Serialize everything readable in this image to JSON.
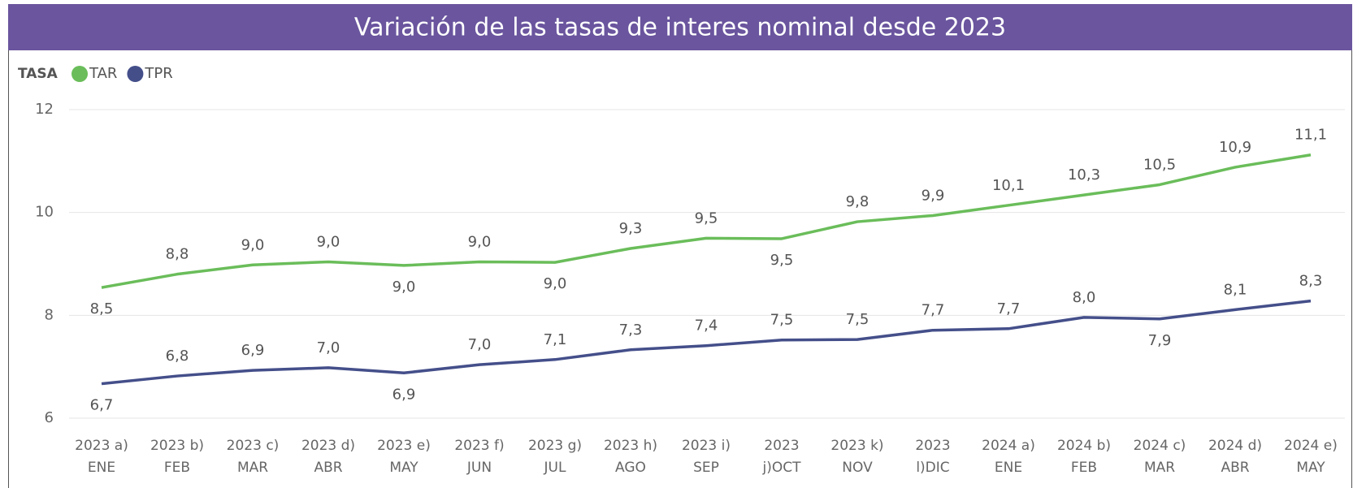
{
  "chart_data": {
    "type": "line",
    "title": "Variación de las tasas de interes nominal desde 2023",
    "legend_title": "TASA",
    "categories": [
      "2023 a) ENE",
      "2023 b) FEB",
      "2023 c) MAR",
      "2023 d) ABR",
      "2023 e) MAY",
      "2023 f) JUN",
      "2023 g) JUL",
      "2023 h) AGO",
      "2023 i) SEP",
      "2023 j)OCT",
      "2023 k) NOV",
      "2023 l)DIC",
      "2024 a) ENE",
      "2024 b) FEB",
      "2024 c) MAR",
      "2024 d) ABR",
      "2024 e) MAY"
    ],
    "series": [
      {
        "name": "TAR",
        "color": "#6abd5a",
        "values": [
          8.54,
          8.8,
          8.98,
          9.04,
          8.97,
          9.04,
          9.03,
          9.3,
          9.5,
          9.49,
          9.82,
          9.94,
          10.14,
          10.34,
          10.54,
          10.88,
          11.12
        ],
        "value_labels": [
          "8,5",
          "8,8",
          "9,0",
          "9,0",
          "9,0",
          "9,0",
          "9,0",
          "9,3",
          "9,5",
          "9,5",
          "9,8",
          "9,9",
          "10,1",
          "10,3",
          "10,5",
          "10,9",
          "11,1"
        ]
      },
      {
        "name": "TPR",
        "color": "#444f8a",
        "values": [
          6.67,
          6.82,
          6.93,
          6.98,
          6.88,
          7.04,
          7.14,
          7.33,
          7.41,
          7.52,
          7.53,
          7.71,
          7.74,
          7.96,
          7.93,
          8.11,
          8.28
        ],
        "value_labels": [
          "6,7",
          "6,8",
          "6,9",
          "7,0",
          "6,9",
          "7,0",
          "7,1",
          "7,3",
          "7,4",
          "7,5",
          "7,5",
          "7,7",
          "7,7",
          "8,0",
          "7,9",
          "8,1",
          "8,3"
        ]
      }
    ],
    "ylim": [
      6,
      12
    ],
    "yticks": [
      6,
      8,
      10,
      12
    ],
    "grid": true
  }
}
